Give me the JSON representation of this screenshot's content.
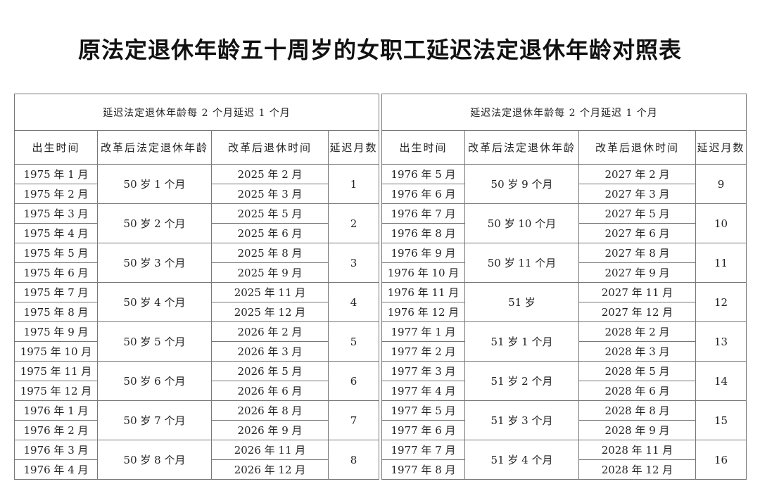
{
  "title": "原法定退休年龄五十周岁的女职工延迟法定退休年龄对照表",
  "tables": [
    {
      "heading": "延迟法定退休年龄每 2 个月延迟 1 个月",
      "columns": [
        "出生时间",
        "改革后法定退休年龄",
        "改革后退休时间",
        "延迟月数"
      ],
      "groups": [
        {
          "births": [
            "1975 年 1 月",
            "1975 年 2 月"
          ],
          "age": "50 岁 1 个月",
          "retire": [
            "2025 年 2 月",
            "2025 年 3 月"
          ],
          "months": "1"
        },
        {
          "births": [
            "1975 年 3 月",
            "1975 年 4 月"
          ],
          "age": "50 岁 2 个月",
          "retire": [
            "2025 年 5 月",
            "2025 年 6 月"
          ],
          "months": "2"
        },
        {
          "births": [
            "1975 年 5 月",
            "1975 年 6 月"
          ],
          "age": "50 岁 3 个月",
          "retire": [
            "2025 年 8 月",
            "2025 年 9 月"
          ],
          "months": "3"
        },
        {
          "births": [
            "1975 年 7 月",
            "1975 年 8 月"
          ],
          "age": "50 岁 4 个月",
          "retire": [
            "2025 年 11 月",
            "2025 年 12 月"
          ],
          "months": "4"
        },
        {
          "births": [
            "1975 年 9 月",
            "1975 年 10 月"
          ],
          "age": "50 岁 5 个月",
          "retire": [
            "2026 年 2 月",
            "2026 年 3 月"
          ],
          "months": "5"
        },
        {
          "births": [
            "1975 年 11 月",
            "1975 年 12 月"
          ],
          "age": "50 岁 6 个月",
          "retire": [
            "2026 年 5 月",
            "2026 年 6 月"
          ],
          "months": "6"
        },
        {
          "births": [
            "1976 年 1 月",
            "1976 年 2 月"
          ],
          "age": "50 岁 7 个月",
          "retire": [
            "2026 年 8 月",
            "2026 年 9 月"
          ],
          "months": "7"
        },
        {
          "births": [
            "1976 年 3 月",
            "1976 年 4 月"
          ],
          "age": "50 岁 8 个月",
          "retire": [
            "2026 年 11 月",
            "2026 年 12 月"
          ],
          "months": "8"
        }
      ]
    },
    {
      "heading": "延迟法定退休年龄每 2 个月延迟 1 个月",
      "columns": [
        "出生时间",
        "改革后法定退休年龄",
        "改革后退休时间",
        "延迟月数"
      ],
      "groups": [
        {
          "births": [
            "1976 年 5 月",
            "1976 年 6 月"
          ],
          "age": "50 岁 9 个月",
          "retire": [
            "2027 年 2 月",
            "2027 年 3 月"
          ],
          "months": "9"
        },
        {
          "births": [
            "1976 年 7 月",
            "1976 年 8 月"
          ],
          "age": "50 岁 10 个月",
          "retire": [
            "2027 年 5 月",
            "2027 年 6 月"
          ],
          "months": "10"
        },
        {
          "births": [
            "1976 年 9 月",
            "1976 年 10 月"
          ],
          "age": "50 岁 11 个月",
          "retire": [
            "2027 年 8 月",
            "2027 年 9 月"
          ],
          "months": "11"
        },
        {
          "births": [
            "1976 年 11 月",
            "1976 年 12 月"
          ],
          "age": "51 岁",
          "retire": [
            "2027 年 11 月",
            "2027 年 12 月"
          ],
          "months": "12"
        },
        {
          "births": [
            "1977 年 1 月",
            "1977 年 2 月"
          ],
          "age": "51 岁 1 个月",
          "retire": [
            "2028 年 2 月",
            "2028 年 3 月"
          ],
          "months": "13"
        },
        {
          "births": [
            "1977 年 3 月",
            "1977 年 4 月"
          ],
          "age": "51 岁 2 个月",
          "retire": [
            "2028 年 5 月",
            "2028 年 6 月"
          ],
          "months": "14"
        },
        {
          "births": [
            "1977 年 5 月",
            "1977 年 6 月"
          ],
          "age": "51 岁 3 个月",
          "retire": [
            "2028 年 8 月",
            "2028 年 9 月"
          ],
          "months": "15"
        },
        {
          "births": [
            "1977 年 7 月",
            "1977 年 8 月"
          ],
          "age": "51 岁 4 个月",
          "retire": [
            "2028 年 11 月",
            "2028 年 12 月"
          ],
          "months": "16"
        }
      ]
    }
  ]
}
